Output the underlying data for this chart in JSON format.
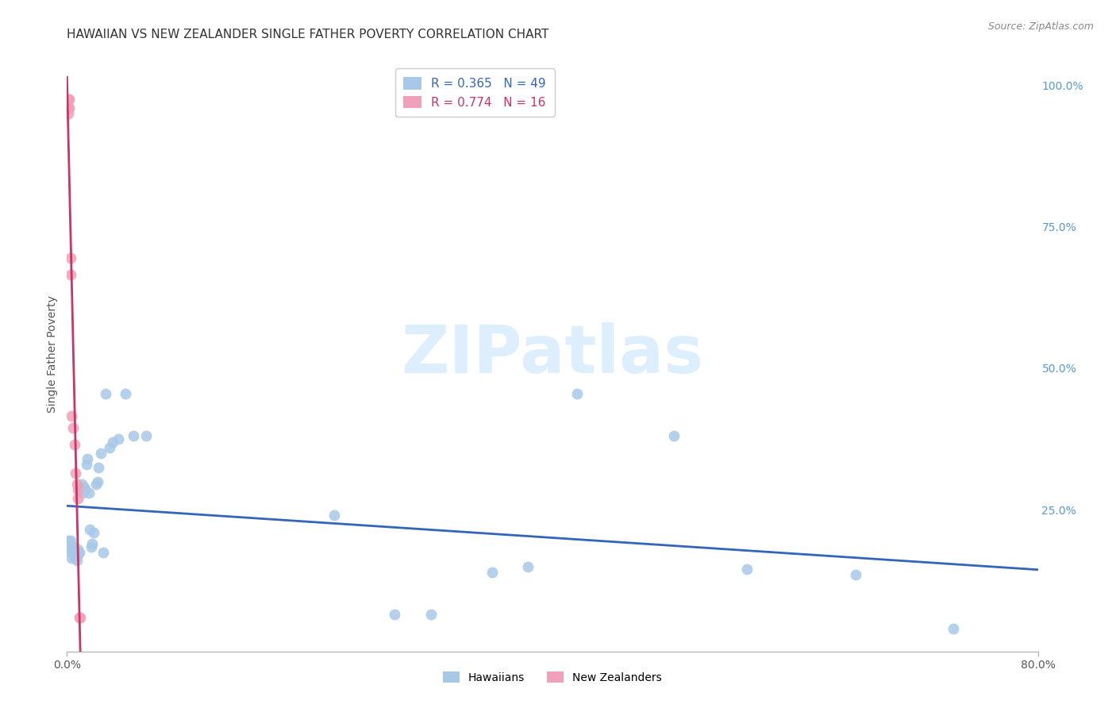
{
  "title": "HAWAIIAN VS NEW ZEALANDER SINGLE FATHER POVERTY CORRELATION CHART",
  "source": "Source: ZipAtlas.com",
  "ylabel": "Single Father Poverty",
  "xlim": [
    0,
    0.8
  ],
  "ylim": [
    0,
    1.05
  ],
  "yticks_right": [
    0.25,
    0.5,
    0.75,
    1.0
  ],
  "yticklabels_right": [
    "25.0%",
    "50.0%",
    "75.0%",
    "100.0%"
  ],
  "grid_color": "#c8c8c8",
  "background_color": "#ffffff",
  "hawaiian_color": "#a8c8e8",
  "nz_color": "#f0a0b8",
  "trendline_hawaiian_color": "#3366bb",
  "trendline_nz_color": "#cc3366",
  "legend_R_hawaiian": "R = 0.365",
  "legend_N_hawaiian": "N = 49",
  "legend_R_nz": "R = 0.774",
  "legend_N_nz": "N = 16",
  "hawaiian_x": [
    0.001,
    0.002,
    0.003,
    0.003,
    0.004,
    0.004,
    0.005,
    0.005,
    0.006,
    0.007,
    0.007,
    0.008,
    0.009,
    0.009,
    0.01,
    0.011,
    0.012,
    0.013,
    0.014,
    0.015,
    0.016,
    0.017,
    0.018,
    0.019,
    0.02,
    0.021,
    0.022,
    0.024,
    0.025,
    0.026,
    0.028,
    0.03,
    0.032,
    0.035,
    0.038,
    0.042,
    0.048,
    0.055,
    0.065,
    0.22,
    0.27,
    0.3,
    0.35,
    0.38,
    0.42,
    0.5,
    0.56,
    0.65,
    0.73
  ],
  "hawaiian_y": [
    0.195,
    0.185,
    0.195,
    0.175,
    0.18,
    0.165,
    0.175,
    0.185,
    0.17,
    0.165,
    0.175,
    0.16,
    0.17,
    0.18,
    0.175,
    0.285,
    0.295,
    0.28,
    0.29,
    0.285,
    0.33,
    0.34,
    0.28,
    0.215,
    0.185,
    0.19,
    0.21,
    0.295,
    0.3,
    0.325,
    0.35,
    0.175,
    0.455,
    0.36,
    0.37,
    0.375,
    0.455,
    0.38,
    0.38,
    0.24,
    0.065,
    0.065,
    0.14,
    0.15,
    0.455,
    0.38,
    0.145,
    0.135,
    0.04
  ],
  "nz_x": [
    0.001,
    0.001,
    0.001,
    0.002,
    0.002,
    0.003,
    0.003,
    0.004,
    0.005,
    0.006,
    0.007,
    0.008,
    0.009,
    0.009,
    0.01,
    0.011
  ],
  "nz_y": [
    0.975,
    0.96,
    0.95,
    0.975,
    0.96,
    0.695,
    0.665,
    0.415,
    0.395,
    0.365,
    0.315,
    0.295,
    0.285,
    0.27,
    0.06,
    0.06
  ],
  "watermark_text": "ZIPatlas",
  "watermark_color": "#ddeeff",
  "title_fontsize": 11,
  "axis_label_fontsize": 10,
  "tick_fontsize": 10,
  "legend_fontsize": 11,
  "source_fontsize": 9
}
